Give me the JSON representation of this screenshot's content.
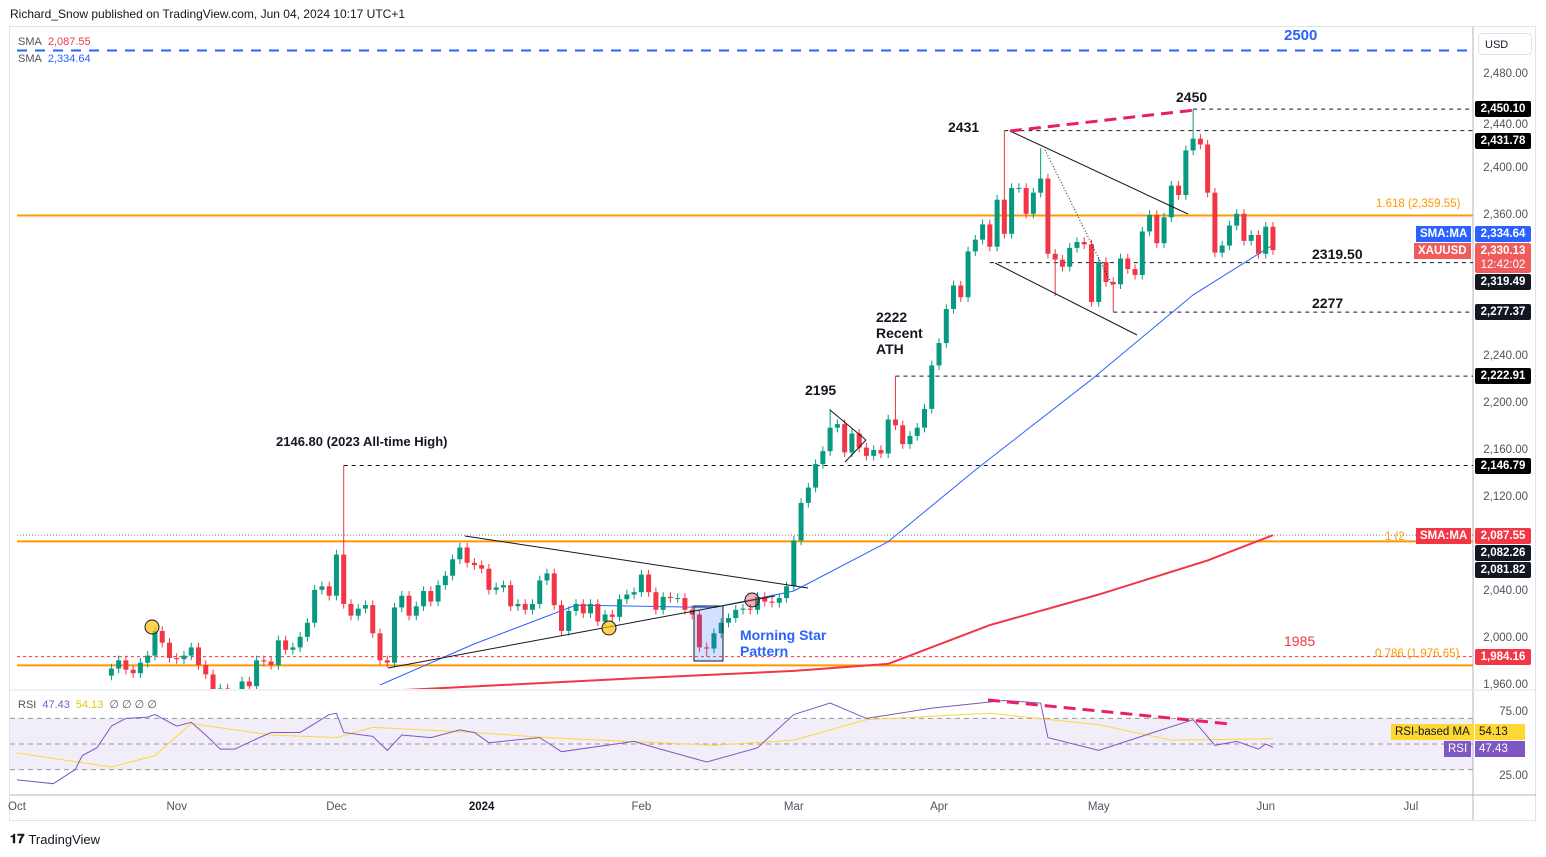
{
  "header": {
    "published": "Richard_Snow published on TradingView.com, Jun 04, 2024 10:17 UTC+1"
  },
  "legend": {
    "sma1_label": "SMA",
    "sma1_value": "2,087.55",
    "sma2_label": "SMA",
    "sma2_value": "2,334.64",
    "rsi_label": "RSI",
    "rsi_value": "47.43",
    "rsi_ma_value": "54.13",
    "rsi_extra": "∅ ∅ ∅ ∅"
  },
  "currency": "USD",
  "footer": {
    "brand": "TradingView"
  },
  "colors": {
    "up": "#089981",
    "down": "#f23645",
    "sma50": "#2962ff",
    "sma200": "#f23645",
    "fib": "#ff9800",
    "rsi": "#7e57c2",
    "rsi_ma": "#fdd835",
    "annot_blue": "#2962ff",
    "pink": "#e91e63"
  },
  "annotations": {
    "a2500": "2500",
    "a2450": "2450",
    "a2431": "2431",
    "a2319": "2319.50",
    "a2277": "2277",
    "a2222_1": "2222",
    "a2222_2": "Recent",
    "a2222_3": "ATH",
    "a2195": "2195",
    "a2146": "2146.80 (2023 All-time High)",
    "a1985": "1985",
    "morning_1": "Morning Star",
    "morning_2": "Pattern",
    "fib1618": "1.618 (2,359.55)",
    "fib1": "1 (2",
    "fib0786": "0.786 (1,976.65)"
  },
  "price_axis": {
    "ticks": [
      "2,480.00",
      "2,440.00",
      "2,400.00",
      "2,360.00",
      "2,240.00",
      "2,200.00",
      "2,160.00",
      "2,120.00",
      "2,040.00",
      "2,000.00",
      "1,960.00"
    ],
    "tick_values": [
      2480,
      2440,
      2400,
      2360,
      2240,
      2200,
      2160,
      2120,
      2040,
      2000,
      1960
    ],
    "tags": [
      {
        "value": 2450.1,
        "text": "2,450.10",
        "color": "#000000"
      },
      {
        "value": 2431.78,
        "text": "2,431.78",
        "color": "#000000"
      },
      {
        "value": 2319.49,
        "text": "2,319.49",
        "color": "#131722"
      },
      {
        "value": 2277.37,
        "text": "2,277.37",
        "color": "#131722"
      },
      {
        "value": 2222.91,
        "text": "2,222.91",
        "color": "#000000"
      },
      {
        "value": 2146.79,
        "text": "2,146.79",
        "color": "#000000"
      },
      {
        "value": 2082.26,
        "text": "2,082.26",
        "color": "#131722"
      },
      {
        "value": 2081.82,
        "text": "2,081.82",
        "color": "#131722"
      },
      {
        "value": 1984.16,
        "text": "1,984.16",
        "color": "#f23645"
      }
    ],
    "sma50_tag": {
      "label": "SMA:MA",
      "text": "2,334.64"
    },
    "price_tag": {
      "label": "XAUUSD",
      "text": "2,330.13",
      "countdown": "12:42:02"
    },
    "sma200_tag": {
      "label": "SMA:MA",
      "text": "2,087.55"
    }
  },
  "rsi_axis": {
    "ticks": [
      "75.00",
      "25.00"
    ],
    "ma_tag_label": "RSI-based MA",
    "ma_tag_value": "54.13",
    "rsi_tag_label": "RSI",
    "rsi_tag_value": "47.43"
  },
  "time_axis": [
    {
      "label": "Oct",
      "date": "2023-10-02"
    },
    {
      "label": "Nov",
      "date": "2023-11-01"
    },
    {
      "label": "Dec",
      "date": "2023-12-01"
    },
    {
      "label": "2024",
      "date": "2024-01-02",
      "bold": true
    },
    {
      "label": "Feb",
      "date": "2024-02-01"
    },
    {
      "label": "Mar",
      "date": "2024-03-01"
    },
    {
      "label": "Apr",
      "date": "2024-04-01"
    },
    {
      "label": "May",
      "date": "2024-05-01"
    },
    {
      "label": "Jun",
      "date": "2024-06-03"
    },
    {
      "label": "Jul",
      "date": "2024-07-01"
    }
  ],
  "chart_data": {
    "type": "candlestick",
    "symbol": "XAUUSD",
    "interval": "1D",
    "ylim": [
      1955,
      2510
    ],
    "start_close": 1968,
    "closes": [
      [
        "2023-10-19",
        1974
      ],
      [
        "2023-10-20",
        1981
      ],
      [
        "2023-10-23",
        1973
      ],
      [
        "2023-10-24",
        1970
      ],
      [
        "2023-10-25",
        1979
      ],
      [
        "2023-10-26",
        1985
      ],
      [
        "2023-10-27",
        2006
      ],
      [
        "2023-10-30",
        1996
      ],
      [
        "2023-10-31",
        1983
      ],
      [
        "2023-11-01",
        1982
      ],
      [
        "2023-11-02",
        1985
      ],
      [
        "2023-11-03",
        1992
      ],
      [
        "2023-11-06",
        1977
      ],
      [
        "2023-11-07",
        1969
      ],
      [
        "2023-11-08",
        1950
      ],
      [
        "2023-11-09",
        1957
      ],
      [
        "2023-11-10",
        1940
      ],
      [
        "2023-11-13",
        1946
      ],
      [
        "2023-11-14",
        1963
      ],
      [
        "2023-11-15",
        1959
      ],
      [
        "2023-11-16",
        1981
      ],
      [
        "2023-11-17",
        1980
      ],
      [
        "2023-11-20",
        1977
      ],
      [
        "2023-11-21",
        1998
      ],
      [
        "2023-11-22",
        1990
      ],
      [
        "2023-11-23",
        1992
      ],
      [
        "2023-11-24",
        2001
      ],
      [
        "2023-11-27",
        2013
      ],
      [
        "2023-11-28",
        2041
      ],
      [
        "2023-11-29",
        2044
      ],
      [
        "2023-11-30",
        2036
      ],
      [
        "2023-12-01",
        2071
      ],
      [
        "2023-12-04",
        2029
      ],
      [
        "2023-12-05",
        2019
      ],
      [
        "2023-12-06",
        2025
      ],
      [
        "2023-12-07",
        2028
      ],
      [
        "2023-12-08",
        2004
      ],
      [
        "2023-12-11",
        1981
      ],
      [
        "2023-12-12",
        1979
      ],
      [
        "2023-12-13",
        2026
      ],
      [
        "2023-12-14",
        2036
      ],
      [
        "2023-12-15",
        2019
      ],
      [
        "2023-12-18",
        2027
      ],
      [
        "2023-12-19",
        2040
      ],
      [
        "2023-12-20",
        2031
      ],
      [
        "2023-12-21",
        2045
      ],
      [
        "2023-12-22",
        2053
      ],
      [
        "2023-12-26",
        2067
      ],
      [
        "2023-12-27",
        2077
      ],
      [
        "2023-12-28",
        2064
      ],
      [
        "2023-12-29",
        2062
      ],
      [
        "2024-01-02",
        2059
      ],
      [
        "2024-01-03",
        2041
      ],
      [
        "2024-01-04",
        2043
      ],
      [
        "2024-01-05",
        2045
      ],
      [
        "2024-01-08",
        2027
      ],
      [
        "2024-01-09",
        2029
      ],
      [
        "2024-01-10",
        2024
      ],
      [
        "2024-01-11",
        2029
      ],
      [
        "2024-01-12",
        2049
      ],
      [
        "2024-01-15",
        2055
      ],
      [
        "2024-01-16",
        2028
      ],
      [
        "2024-01-17",
        2006
      ],
      [
        "2024-01-18",
        2023
      ],
      [
        "2024-01-19",
        2029
      ],
      [
        "2024-01-22",
        2021
      ],
      [
        "2024-01-23",
        2029
      ],
      [
        "2024-01-24",
        2014
      ],
      [
        "2024-01-25",
        2020
      ],
      [
        "2024-01-26",
        2018
      ],
      [
        "2024-01-29",
        2033
      ],
      [
        "2024-01-30",
        2037
      ],
      [
        "2024-01-31",
        2039
      ],
      [
        "2024-02-01",
        2054
      ],
      [
        "2024-02-02",
        2039
      ],
      [
        "2024-02-05",
        2024
      ],
      [
        "2024-02-06",
        2035
      ],
      [
        "2024-02-07",
        2034
      ],
      [
        "2024-02-08",
        2034
      ],
      [
        "2024-02-09",
        2024
      ],
      [
        "2024-02-12",
        2020
      ],
      [
        "2024-02-13",
        1992
      ],
      [
        "2024-02-14",
        1991
      ],
      [
        "2024-02-15",
        2004
      ],
      [
        "2024-02-16",
        2013
      ],
      [
        "2024-02-19",
        2017
      ],
      [
        "2024-02-20",
        2024
      ],
      [
        "2024-02-21",
        2025
      ],
      [
        "2024-02-22",
        2024
      ],
      [
        "2024-02-23",
        2035
      ],
      [
        "2024-02-26",
        2031
      ],
      [
        "2024-02-27",
        2030
      ],
      [
        "2024-02-28",
        2034
      ],
      [
        "2024-02-29",
        2044
      ],
      [
        "2024-03-01",
        2083
      ],
      [
        "2024-03-04",
        2115
      ],
      [
        "2024-03-05",
        2128
      ],
      [
        "2024-03-06",
        2148
      ],
      [
        "2024-03-07",
        2159
      ],
      [
        "2024-03-08",
        2179
      ],
      [
        "2024-03-11",
        2182
      ],
      [
        "2024-03-12",
        2158
      ],
      [
        "2024-03-13",
        2174
      ],
      [
        "2024-03-14",
        2162
      ],
      [
        "2024-03-15",
        2155
      ],
      [
        "2024-03-18",
        2160
      ],
      [
        "2024-03-19",
        2157
      ],
      [
        "2024-03-20",
        2186
      ],
      [
        "2024-03-21",
        2181
      ],
      [
        "2024-03-22",
        2165
      ],
      [
        "2024-03-25",
        2172
      ],
      [
        "2024-03-26",
        2179
      ],
      [
        "2024-03-27",
        2195
      ],
      [
        "2024-03-28",
        2232
      ],
      [
        "2024-04-01",
        2251
      ],
      [
        "2024-04-02",
        2280
      ],
      [
        "2024-04-03",
        2300
      ],
      [
        "2024-04-04",
        2290
      ],
      [
        "2024-04-05",
        2329
      ],
      [
        "2024-04-08",
        2339
      ],
      [
        "2024-04-09",
        2352
      ],
      [
        "2024-04-10",
        2333
      ],
      [
        "2024-04-11",
        2373
      ],
      [
        "2024-04-12",
        2344
      ],
      [
        "2024-04-15",
        2383
      ],
      [
        "2024-04-16",
        2383
      ],
      [
        "2024-04-17",
        2361
      ],
      [
        "2024-04-18",
        2379
      ],
      [
        "2024-04-19",
        2391
      ],
      [
        "2024-04-22",
        2327
      ],
      [
        "2024-04-23",
        2322
      ],
      [
        "2024-04-24",
        2316
      ],
      [
        "2024-04-25",
        2332
      ],
      [
        "2024-04-26",
        2337
      ],
      [
        "2024-04-29",
        2335
      ],
      [
        "2024-04-30",
        2286
      ],
      [
        "2024-05-01",
        2320
      ],
      [
        "2024-05-02",
        2303
      ],
      [
        "2024-05-03",
        2301
      ],
      [
        "2024-05-06",
        2323
      ],
      [
        "2024-05-07",
        2314
      ],
      [
        "2024-05-08",
        2309
      ],
      [
        "2024-05-09",
        2346
      ],
      [
        "2024-05-10",
        2360
      ],
      [
        "2024-05-13",
        2336
      ],
      [
        "2024-05-14",
        2358
      ],
      [
        "2024-05-15",
        2385
      ],
      [
        "2024-05-16",
        2377
      ],
      [
        "2024-05-17",
        2415
      ],
      [
        "2024-05-20",
        2425
      ],
      [
        "2024-05-21",
        2420
      ],
      [
        "2024-05-22",
        2379
      ],
      [
        "2024-05-23",
        2328
      ],
      [
        "2024-05-24",
        2334
      ],
      [
        "2024-05-27",
        2351
      ],
      [
        "2024-05-28",
        2361
      ],
      [
        "2024-05-29",
        2338
      ],
      [
        "2024-05-30",
        2343
      ],
      [
        "2024-05-31",
        2327
      ],
      [
        "2024-06-03",
        2350
      ],
      [
        "2024-06-04",
        2330.13
      ]
    ],
    "high_overrides": {
      "2023-10-27": 2009,
      "2023-12-04": 2146.8,
      "2024-03-08": 2195,
      "2024-03-21": 2222.9,
      "2024-04-12": 2431.8,
      "2024-05-20": 2450.1,
      "2024-04-19": 2417
    },
    "low_overrides": {
      "2024-02-14": 1984.2,
      "2024-05-03": 2277.4,
      "2024-04-23": 2291
    },
    "sma50": [
      [
        "2023-12-11",
        1960
      ],
      [
        "2023-12-29",
        1995
      ],
      [
        "2024-01-19",
        2028
      ],
      [
        "2024-02-15",
        2026
      ],
      [
        "2024-03-01",
        2040
      ],
      [
        "2024-03-20",
        2082
      ],
      [
        "2024-04-08",
        2143
      ],
      [
        "2024-04-30",
        2220
      ],
      [
        "2024-05-20",
        2292
      ],
      [
        "2024-06-04",
        2334.64
      ]
    ],
    "sma200": [
      [
        "2023-12-12",
        1955
      ],
      [
        "2024-02-01",
        1966
      ],
      [
        "2024-03-01",
        1972
      ],
      [
        "2024-03-20",
        1978
      ],
      [
        "2024-04-10",
        2011
      ],
      [
        "2024-05-01",
        2037
      ],
      [
        "2024-05-22",
        2066
      ],
      [
        "2024-06-04",
        2087.55
      ]
    ],
    "rsi": [
      [
        "2023-10-02",
        22
      ],
      [
        "2023-10-09",
        19
      ],
      [
        "2023-10-12",
        30
      ],
      [
        "2023-10-13",
        41
      ],
      [
        "2023-10-17",
        47
      ],
      [
        "2023-10-19",
        64
      ],
      [
        "2023-10-23",
        70
      ],
      [
        "2023-10-26",
        71
      ],
      [
        "2023-10-27",
        73
      ],
      [
        "2023-11-01",
        64
      ],
      [
        "2023-11-03",
        67
      ],
      [
        "2023-11-07",
        57
      ],
      [
        "2023-11-09",
        46
      ],
      [
        "2023-11-13",
        46
      ],
      [
        "2023-11-16",
        54
      ],
      [
        "2023-11-20",
        59
      ],
      [
        "2023-11-24",
        59
      ],
      [
        "2023-11-28",
        66
      ],
      [
        "2023-11-30",
        73
      ],
      [
        "2023-12-01",
        74
      ],
      [
        "2023-12-04",
        59
      ],
      [
        "2023-12-08",
        56
      ],
      [
        "2023-12-12",
        45
      ],
      [
        "2023-12-14",
        57
      ],
      [
        "2023-12-20",
        55
      ],
      [
        "2023-12-27",
        61
      ],
      [
        "2023-12-29",
        59
      ],
      [
        "2024-01-03",
        51
      ],
      [
        "2024-01-12",
        55
      ],
      [
        "2024-01-17",
        44
      ],
      [
        "2024-01-31",
        52
      ],
      [
        "2024-02-05",
        47
      ],
      [
        "2024-02-14",
        36
      ],
      [
        "2024-02-23",
        47
      ],
      [
        "2024-03-01",
        73
      ],
      [
        "2024-03-08",
        82
      ],
      [
        "2024-03-15",
        70
      ],
      [
        "2024-03-28",
        78
      ],
      [
        "2024-04-12",
        84
      ],
      [
        "2024-04-19",
        82
      ],
      [
        "2024-04-22",
        55
      ],
      [
        "2024-05-01",
        45
      ],
      [
        "2024-05-10",
        58
      ],
      [
        "2024-05-20",
        69
      ],
      [
        "2024-05-23",
        49
      ],
      [
        "2024-05-28",
        52
      ],
      [
        "2024-05-31",
        46
      ],
      [
        "2024-06-03",
        50
      ],
      [
        "2024-06-04",
        47.43
      ]
    ],
    "rsi_ma": [
      [
        "2023-10-02",
        43
      ],
      [
        "2023-10-19",
        32
      ],
      [
        "2023-10-27",
        41
      ],
      [
        "2023-11-03",
        66
      ],
      [
        "2023-11-20",
        57
      ],
      [
        "2023-12-01",
        55
      ],
      [
        "2023-12-08",
        63
      ],
      [
        "2023-12-29",
        59
      ],
      [
        "2024-01-15",
        55
      ],
      [
        "2024-02-15",
        49
      ],
      [
        "2024-03-01",
        53
      ],
      [
        "2024-03-15",
        69
      ],
      [
        "2024-04-10",
        74
      ],
      [
        "2024-05-01",
        65
      ],
      [
        "2024-05-15",
        53
      ],
      [
        "2024-06-04",
        54.13
      ]
    ],
    "rsi_levels": [
      70,
      50,
      30
    ],
    "levels": [
      {
        "price": 2500,
        "style": "dash-blue",
        "from": "2023-10-02"
      },
      {
        "price": 2450.1,
        "style": "dash",
        "from": "2024-05-20"
      },
      {
        "price": 2431.78,
        "style": "dash",
        "from": "2024-04-12"
      },
      {
        "price": 2359.55,
        "style": "orange",
        "from": "2023-10-02"
      },
      {
        "price": 2319.49,
        "style": "dash",
        "from": "2024-04-10"
      },
      {
        "price": 2277.37,
        "style": "dash",
        "from": "2024-05-03"
      },
      {
        "price": 2222.91,
        "style": "dash",
        "from": "2024-03-21"
      },
      {
        "price": 2146.79,
        "style": "dash",
        "from": "2023-12-04"
      },
      {
        "price": 2087.55,
        "style": "dotted",
        "from": "2023-10-02"
      },
      {
        "price": 2082.26,
        "style": "orange",
        "from": "2023-10-02"
      },
      {
        "price": 1984.16,
        "style": "dash-red",
        "from": "2023-10-02"
      },
      {
        "price": 1976.65,
        "style": "orange",
        "from": "2023-10-02"
      }
    ]
  }
}
